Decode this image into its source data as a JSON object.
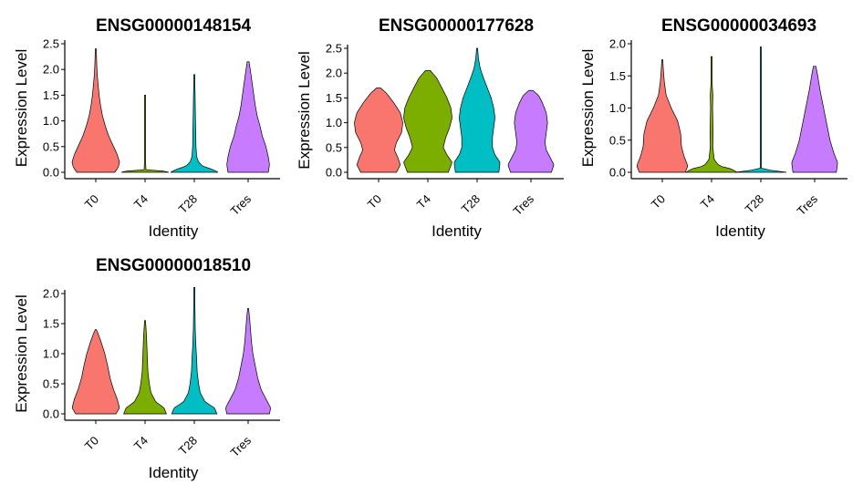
{
  "chart_data": [
    {
      "type": "violin",
      "title": "ENSG00000148154",
      "xlabel": "Identity",
      "ylabel": "Expression Level",
      "categories": [
        "T0",
        "T4",
        "T28",
        "Tres"
      ],
      "colors": [
        "#F8766D",
        "#7CAE00",
        "#00BFC4",
        "#C77CFF"
      ],
      "ylim": [
        0,
        2.5
      ],
      "yticks": [
        0.0,
        0.5,
        1.0,
        1.5,
        2.0,
        2.5
      ],
      "ytick_labels": [
        "0.0",
        "0.5",
        "1.0",
        "1.5",
        "2.0",
        "2.5"
      ],
      "max_values": [
        2.4,
        1.5,
        1.9,
        2.15
      ],
      "density_profiles": [
        [
          [
            0,
            0.8
          ],
          [
            0.1,
            0.95
          ],
          [
            0.2,
            1.0
          ],
          [
            0.35,
            0.9
          ],
          [
            0.5,
            0.75
          ],
          [
            0.7,
            0.55
          ],
          [
            0.9,
            0.4
          ],
          [
            1.1,
            0.28
          ],
          [
            1.3,
            0.2
          ],
          [
            1.5,
            0.14
          ],
          [
            1.7,
            0.1
          ],
          [
            1.9,
            0.06
          ],
          [
            2.1,
            0.04
          ],
          [
            2.4,
            0.02
          ]
        ],
        [
          [
            0,
            1.0
          ],
          [
            0.02,
            0.9
          ],
          [
            0.05,
            0.04
          ],
          [
            0.3,
            0.01
          ],
          [
            0.6,
            0.01
          ],
          [
            0.9,
            0.01
          ],
          [
            1.2,
            0.01
          ],
          [
            1.5,
            0.005
          ]
        ],
        [
          [
            0,
            1.0
          ],
          [
            0.05,
            0.8
          ],
          [
            0.12,
            0.35
          ],
          [
            0.2,
            0.18
          ],
          [
            0.3,
            0.1
          ],
          [
            0.5,
            0.07
          ],
          [
            0.8,
            0.06
          ],
          [
            1.0,
            0.05
          ],
          [
            1.3,
            0.04
          ],
          [
            1.6,
            0.03
          ],
          [
            1.9,
            0.01
          ]
        ],
        [
          [
            0,
            0.85
          ],
          [
            0.15,
            0.9
          ],
          [
            0.3,
            0.85
          ],
          [
            0.5,
            0.75
          ],
          [
            0.7,
            0.6
          ],
          [
            0.9,
            0.5
          ],
          [
            1.1,
            0.38
          ],
          [
            1.3,
            0.3
          ],
          [
            1.5,
            0.24
          ],
          [
            1.7,
            0.18
          ],
          [
            1.9,
            0.12
          ],
          [
            2.15,
            0.04
          ]
        ]
      ]
    },
    {
      "type": "violin",
      "title": "ENSG00000177628",
      "xlabel": "Identity",
      "ylabel": "Expression Level",
      "categories": [
        "T0",
        "T4",
        "T28",
        "Tres"
      ],
      "colors": [
        "#F8766D",
        "#7CAE00",
        "#00BFC4",
        "#C77CFF"
      ],
      "ylim": [
        0,
        2.5
      ],
      "yticks": [
        0.0,
        0.5,
        1.0,
        1.5,
        2.0,
        2.5
      ],
      "ytick_labels": [
        "0.0",
        "0.5",
        "1.0",
        "1.5",
        "2.0",
        "2.5"
      ],
      "max_values": [
        1.7,
        2.05,
        2.5,
        1.65
      ],
      "density_profiles": [
        [
          [
            0,
            0.7
          ],
          [
            0.15,
            0.85
          ],
          [
            0.3,
            0.75
          ],
          [
            0.45,
            0.62
          ],
          [
            0.6,
            0.7
          ],
          [
            0.8,
            0.9
          ],
          [
            1.0,
            0.95
          ],
          [
            1.2,
            0.85
          ],
          [
            1.4,
            0.6
          ],
          [
            1.6,
            0.3
          ],
          [
            1.7,
            0.08
          ]
        ],
        [
          [
            0,
            0.8
          ],
          [
            0.2,
            0.95
          ],
          [
            0.35,
            0.75
          ],
          [
            0.5,
            0.6
          ],
          [
            0.7,
            0.7
          ],
          [
            0.9,
            0.85
          ],
          [
            1.1,
            0.95
          ],
          [
            1.3,
            0.9
          ],
          [
            1.5,
            0.75
          ],
          [
            1.7,
            0.55
          ],
          [
            1.9,
            0.35
          ],
          [
            2.05,
            0.1
          ]
        ],
        [
          [
            0,
            0.85
          ],
          [
            0.2,
            0.9
          ],
          [
            0.35,
            0.7
          ],
          [
            0.5,
            0.6
          ],
          [
            0.7,
            0.6
          ],
          [
            0.9,
            0.65
          ],
          [
            1.1,
            0.7
          ],
          [
            1.3,
            0.65
          ],
          [
            1.5,
            0.55
          ],
          [
            1.7,
            0.4
          ],
          [
            1.9,
            0.25
          ],
          [
            2.1,
            0.12
          ],
          [
            2.3,
            0.05
          ],
          [
            2.5,
            0.02
          ]
        ],
        [
          [
            0,
            0.8
          ],
          [
            0.15,
            0.9
          ],
          [
            0.3,
            0.75
          ],
          [
            0.45,
            0.6
          ],
          [
            0.6,
            0.55
          ],
          [
            0.8,
            0.6
          ],
          [
            1.0,
            0.65
          ],
          [
            1.2,
            0.6
          ],
          [
            1.4,
            0.45
          ],
          [
            1.55,
            0.3
          ],
          [
            1.65,
            0.08
          ]
        ]
      ]
    },
    {
      "type": "violin",
      "title": "ENSG00000034693",
      "xlabel": "Identity",
      "ylabel": "Expression Level",
      "categories": [
        "T0",
        "T4",
        "T28",
        "Tres"
      ],
      "colors": [
        "#F8766D",
        "#7CAE00",
        "#00BFC4",
        "#C77CFF"
      ],
      "ylim": [
        0,
        2.0
      ],
      "yticks": [
        0.0,
        0.5,
        1.0,
        1.5,
        2.0
      ],
      "ytick_labels": [
        "0.0",
        "0.5",
        "1.0",
        "1.5",
        "2.0"
      ],
      "max_values": [
        1.75,
        1.8,
        1.95,
        1.65
      ],
      "density_profiles": [
        [
          [
            0,
            0.9
          ],
          [
            0.1,
            1.0
          ],
          [
            0.25,
            0.85
          ],
          [
            0.4,
            0.75
          ],
          [
            0.6,
            0.72
          ],
          [
            0.8,
            0.6
          ],
          [
            1.0,
            0.35
          ],
          [
            1.2,
            0.15
          ],
          [
            1.4,
            0.08
          ],
          [
            1.6,
            0.04
          ],
          [
            1.75,
            0.02
          ]
        ],
        [
          [
            0,
            1.0
          ],
          [
            0.05,
            0.8
          ],
          [
            0.1,
            0.3
          ],
          [
            0.2,
            0.1
          ],
          [
            0.4,
            0.05
          ],
          [
            0.6,
            0.06
          ],
          [
            0.8,
            0.05
          ],
          [
            1.0,
            0.04
          ],
          [
            1.2,
            0.05
          ],
          [
            1.4,
            0.02
          ],
          [
            1.8,
            0.01
          ]
        ],
        [
          [
            0,
            1.0
          ],
          [
            0.02,
            0.95
          ],
          [
            0.04,
            0.02
          ],
          [
            0.5,
            0.01
          ],
          [
            1.0,
            0.01
          ],
          [
            1.5,
            0.01
          ],
          [
            1.95,
            0.005
          ]
        ],
        [
          [
            0,
            0.85
          ],
          [
            0.15,
            0.9
          ],
          [
            0.3,
            0.75
          ],
          [
            0.5,
            0.6
          ],
          [
            0.7,
            0.5
          ],
          [
            0.9,
            0.4
          ],
          [
            1.1,
            0.3
          ],
          [
            1.3,
            0.2
          ],
          [
            1.5,
            0.12
          ],
          [
            1.65,
            0.05
          ]
        ]
      ]
    },
    {
      "type": "violin",
      "title": "ENSG00000018510",
      "xlabel": "Identity",
      "ylabel": "Expression Level",
      "categories": [
        "T0",
        "T4",
        "T28",
        "Tres"
      ],
      "colors": [
        "#F8766D",
        "#7CAE00",
        "#00BFC4",
        "#C77CFF"
      ],
      "ylim": [
        0,
        2.0
      ],
      "yticks": [
        0.0,
        0.5,
        1.0,
        1.5,
        2.0
      ],
      "ytick_labels": [
        "0.0",
        "0.5",
        "1.0",
        "1.5",
        "2.0"
      ],
      "max_values": [
        1.4,
        1.55,
        2.1,
        1.75
      ],
      "density_profiles": [
        [
          [
            0,
            0.85
          ],
          [
            0.1,
            1.0
          ],
          [
            0.25,
            0.9
          ],
          [
            0.4,
            0.75
          ],
          [
            0.6,
            0.6
          ],
          [
            0.8,
            0.5
          ],
          [
            1.0,
            0.38
          ],
          [
            1.2,
            0.22
          ],
          [
            1.35,
            0.08
          ],
          [
            1.4,
            0.02
          ]
        ],
        [
          [
            0,
            0.9
          ],
          [
            0.1,
            0.8
          ],
          [
            0.2,
            0.45
          ],
          [
            0.35,
            0.25
          ],
          [
            0.5,
            0.18
          ],
          [
            0.7,
            0.12
          ],
          [
            0.9,
            0.1
          ],
          [
            1.1,
            0.08
          ],
          [
            1.3,
            0.06
          ],
          [
            1.55,
            0.02
          ]
        ],
        [
          [
            0,
            0.95
          ],
          [
            0.1,
            0.85
          ],
          [
            0.2,
            0.45
          ],
          [
            0.35,
            0.25
          ],
          [
            0.5,
            0.18
          ],
          [
            0.7,
            0.12
          ],
          [
            0.9,
            0.1
          ],
          [
            1.1,
            0.07
          ],
          [
            1.4,
            0.04
          ],
          [
            1.7,
            0.03
          ],
          [
            2.1,
            0.01
          ]
        ],
        [
          [
            0,
            0.9
          ],
          [
            0.1,
            0.95
          ],
          [
            0.25,
            0.75
          ],
          [
            0.4,
            0.55
          ],
          [
            0.6,
            0.4
          ],
          [
            0.8,
            0.3
          ],
          [
            1.0,
            0.2
          ],
          [
            1.2,
            0.14
          ],
          [
            1.4,
            0.1
          ],
          [
            1.6,
            0.06
          ],
          [
            1.75,
            0.02
          ]
        ]
      ]
    }
  ]
}
